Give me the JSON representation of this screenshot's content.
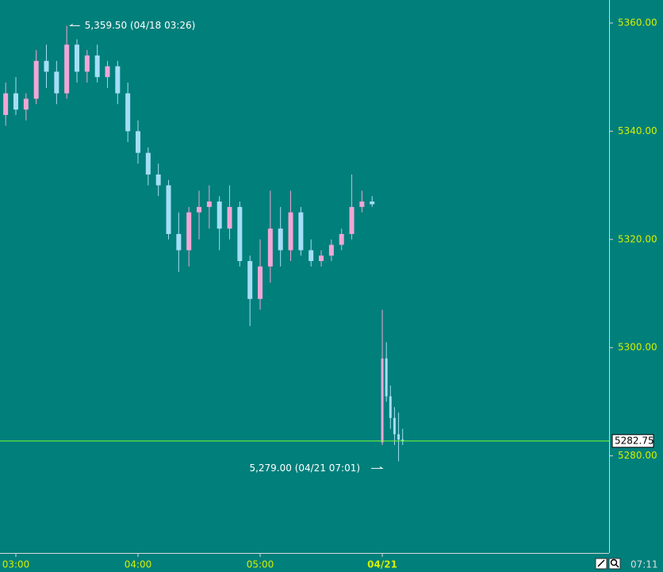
{
  "chart_data": {
    "type": "candlestick",
    "candles": {
      "x": [
        -5,
        0,
        5,
        10,
        15,
        20,
        25,
        30,
        35,
        40,
        45,
        50,
        55,
        60,
        65,
        70,
        75,
        80,
        85,
        90,
        95,
        100,
        105,
        110,
        115,
        120,
        125,
        130,
        135,
        140,
        145,
        150,
        155,
        160,
        165,
        170,
        175,
        180,
        182,
        184,
        186,
        188,
        190
      ],
      "open": [
        5343,
        5347,
        5344,
        5346,
        5353,
        5351,
        5347,
        5356,
        5351,
        5354,
        5350,
        5352,
        5347,
        5340,
        5336,
        5332,
        5330,
        5321,
        5318,
        5325,
        5326,
        5327,
        5322,
        5326,
        5316,
        5309,
        5315,
        5322,
        5318,
        5325,
        5318,
        5316,
        5317,
        5319,
        5321,
        5326,
        5327,
        5282.5,
        5298,
        5291,
        5287,
        5284,
        5283
      ],
      "high": [
        5349,
        5350,
        5347,
        5355,
        5356,
        5353,
        5359.5,
        5357,
        5355,
        5356,
        5353,
        5353,
        5349,
        5342,
        5337,
        5334,
        5331,
        5325,
        5326,
        5329,
        5330,
        5328,
        5330,
        5327,
        5317,
        5320,
        5329,
        5326,
        5329,
        5326,
        5320,
        5318,
        5320,
        5322,
        5332,
        5329,
        5328,
        5307,
        5301,
        5293,
        5289,
        5288,
        5285
      ],
      "low": [
        5341,
        5343,
        5342,
        5345,
        5348,
        5345,
        5346,
        5349,
        5349,
        5349,
        5348,
        5345,
        5338,
        5334,
        5330,
        5328,
        5320,
        5314,
        5315,
        5320,
        5322,
        5318,
        5320,
        5315,
        5304,
        5307,
        5312,
        5315,
        5316,
        5317,
        5315,
        5315,
        5316,
        5318,
        5320,
        5325,
        5326,
        5282,
        5290,
        5285,
        5282,
        5279,
        5282
      ],
      "close": [
        5347,
        5344,
        5346,
        5353,
        5351,
        5347,
        5356,
        5351,
        5354,
        5350,
        5352,
        5347,
        5340,
        5336,
        5332,
        5330,
        5321,
        5318,
        5325,
        5326,
        5327,
        5322,
        5326,
        5316,
        5309,
        5315,
        5322,
        5318,
        5325,
        5318,
        5316,
        5317,
        5319,
        5321,
        5326,
        5327,
        5326.5,
        5298,
        5291,
        5287,
        5284,
        5283,
        5282.75
      ]
    },
    "up_color": "#f2a6d6",
    "down_color": "#a4def6",
    "xlim": [
      -7.79,
      291.4
    ],
    "xticks": [
      {
        "value": 0,
        "label": "03:00"
      },
      {
        "value": 60,
        "label": "04:00"
      },
      {
        "value": 120,
        "label": "05:00"
      },
      {
        "value": 180,
        "label": "04/21"
      }
    ],
    "ylim": [
      5262.05,
      5364.25
    ],
    "yticks": [
      {
        "value": 5280,
        "label": "5280.00"
      },
      {
        "value": 5300,
        "label": "5300.00"
      },
      {
        "value": 5320,
        "label": "5320.00"
      },
      {
        "value": 5340,
        "label": "5340.00"
      },
      {
        "value": 5360,
        "label": "5360.00"
      }
    ],
    "last_price": 5282.75,
    "annotations": [
      {
        "text": "5,359.50 (04/18 03:26)",
        "x": 26,
        "value": 5359.5
      },
      {
        "text": "5,279.00 (04/21 07:01)",
        "x": 180,
        "value": 5279
      }
    ],
    "clock": "07:11"
  }
}
